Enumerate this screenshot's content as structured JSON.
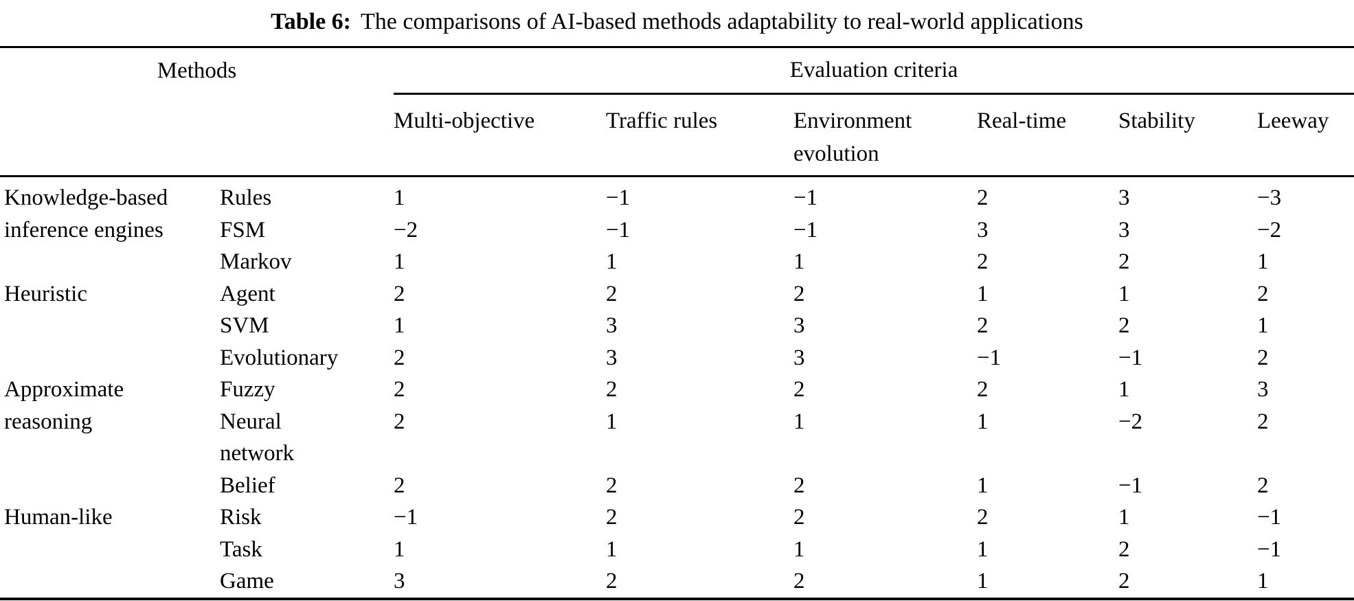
{
  "table": {
    "title": {
      "label": "Table 6:",
      "text": "The comparisons of AI-based methods adaptability to real-world applications"
    },
    "header": {
      "methods_label": "Methods",
      "criteria_group_label": "Evaluation criteria",
      "criteria_columns": [
        "Multi-objective",
        "Traffic rules",
        "Environment\nevolution",
        "Real-time",
        "Stability",
        "Leeway"
      ]
    },
    "groups": [
      {
        "category": "Knowledge-based\ninference engines",
        "rows": [
          {
            "method": "Rules",
            "values": [
              "1",
              "−1",
              "−1",
              "2",
              "3",
              "−3"
            ]
          },
          {
            "method": "FSM",
            "values": [
              "−2",
              "−1",
              "−1",
              "3",
              "3",
              "−2"
            ]
          },
          {
            "method": "Markov",
            "values": [
              "1",
              "1",
              "1",
              "2",
              "2",
              "1"
            ]
          }
        ]
      },
      {
        "category": "Heuristic",
        "rows": [
          {
            "method": "Agent",
            "values": [
              "2",
              "2",
              "2",
              "1",
              "1",
              "2"
            ]
          },
          {
            "method": "SVM",
            "values": [
              "1",
              "3",
              "3",
              "2",
              "2",
              "1"
            ]
          },
          {
            "method": "Evolutionary",
            "values": [
              "2",
              "3",
              "3",
              "−1",
              "−1",
              "2"
            ]
          }
        ]
      },
      {
        "category": "Approximate\nreasoning",
        "rows": [
          {
            "method": "Fuzzy",
            "values": [
              "2",
              "2",
              "2",
              "2",
              "1",
              "3"
            ]
          },
          {
            "method": "Neural\nnetwork",
            "values": [
              "2",
              "1",
              "1",
              "1",
              "−2",
              "2"
            ]
          },
          {
            "method": "Belief",
            "values": [
              "2",
              "2",
              "2",
              "1",
              "−1",
              "2"
            ]
          }
        ]
      },
      {
        "category": "Human-like",
        "rows": [
          {
            "method": "Risk",
            "values": [
              "−1",
              "2",
              "2",
              "2",
              "1",
              "−1"
            ]
          },
          {
            "method": "Task",
            "values": [
              "1",
              "1",
              "1",
              "1",
              "2",
              "−1"
            ]
          },
          {
            "method": "Game",
            "values": [
              "3",
              "2",
              "2",
              "1",
              "2",
              "1"
            ]
          }
        ]
      }
    ]
  }
}
